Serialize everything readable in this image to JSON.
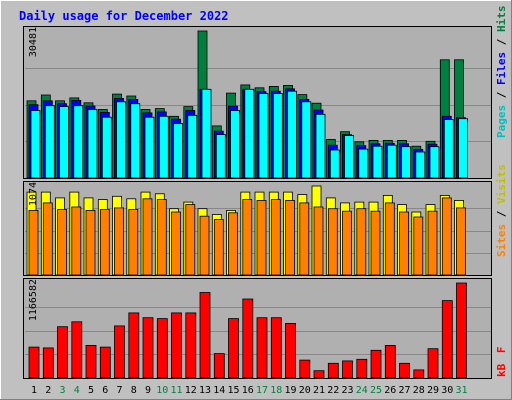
{
  "chart_data": {
    "type": "bar",
    "title": "Daily usage for December 2022",
    "categories": [
      "1",
      "2",
      "3",
      "4",
      "5",
      "6",
      "7",
      "8",
      "9",
      "10",
      "11",
      "12",
      "13",
      "14",
      "15",
      "16",
      "17",
      "18",
      "19",
      "20",
      "21",
      "22",
      "23",
      "24",
      "25",
      "26",
      "27",
      "28",
      "29",
      "30",
      "31"
    ],
    "weekend_days": [
      "3",
      "4",
      "10",
      "11",
      "17",
      "18",
      "24",
      "25",
      "31"
    ],
    "panels": {
      "hits_files_pages": {
        "max_label": "30481",
        "ymax": 30481,
        "legend": [
          "Pages",
          "/",
          "Files",
          "/",
          "Hits"
        ],
        "series": [
          {
            "name": "Hits",
            "color": "#008040",
            "values": [
              16000,
              17200,
              16000,
              16600,
              15600,
              14200,
              17400,
              17000,
              14200,
              14400,
              12800,
              14800,
              30481,
              10800,
              17600,
              19300,
              18700,
              19000,
              19200,
              17300,
              15500,
              8000,
              9600,
              7500,
              7800,
              7800,
              7800,
              6600,
              7600,
              24500,
              24500
            ]
          },
          {
            "name": "Files",
            "color": "#0000ff",
            "values": [
              15200,
              16000,
              15400,
              16100,
              14900,
              13600,
              16500,
              16300,
              13500,
              13700,
              12200,
              14000,
              18400,
              9700,
              14900,
              18400,
              17900,
              18000,
              18500,
              16300,
              14100,
              6800,
              9000,
              6700,
              7100,
              7200,
              7100,
              5900,
              7000,
              12800,
              12500
            ]
          },
          {
            "name": "Pages",
            "color": "#00ffff",
            "values": [
              14000,
              15000,
              14800,
              15000,
              14200,
              12600,
              15800,
              15400,
              12600,
              12800,
              11300,
              13000,
              18400,
              9000,
              14000,
              18400,
              17500,
              17500,
              18000,
              15800,
              13200,
              5800,
              8800,
              6000,
              6600,
              6800,
              6500,
              5400,
              6500,
              12100,
              12300
            ]
          }
        ]
      },
      "visits_sites": {
        "max_label": "1074",
        "ymax": 1074,
        "legend": [
          "Sites",
          "/",
          "Visits"
        ],
        "series": [
          {
            "name": "Visits",
            "color": "#ffff00",
            "values": [
              1000,
              1000,
              930,
              1000,
              930,
              910,
              950,
              920,
              1000,
              980,
              800,
              880,
              800,
              730,
              780,
              1000,
              1000,
              1000,
              1000,
              970,
              1074,
              930,
              870,
              880,
              880,
              960,
              850,
              760,
              850,
              960,
              900
            ]
          },
          {
            "name": "Sites",
            "color": "#ff8000",
            "values": [
              780,
              870,
              790,
              820,
              780,
              790,
              810,
              790,
              920,
              910,
              760,
              850,
              710,
              670,
              750,
              910,
              900,
              910,
              900,
              870,
              820,
              800,
              770,
              800,
              770,
              870,
              760,
              700,
              770,
              930,
              810
            ]
          }
        ]
      },
      "kbytes": {
        "max_label": "1166582",
        "ymax": 1166582,
        "legend": [
          "kB",
          "F"
        ],
        "series": [
          {
            "name": "kB F",
            "color": "#ff0000",
            "values": [
              380000,
              370000,
              630000,
              690000,
              400000,
              380000,
              640000,
              800000,
              740000,
              730000,
              800000,
              800000,
              1050000,
              300000,
              730000,
              970000,
              740000,
              740000,
              670000,
              220000,
              90000,
              180000,
              210000,
              230000,
              340000,
              400000,
              180000,
              100000,
              360000,
              950000,
              1166582
            ]
          }
        ]
      }
    }
  }
}
